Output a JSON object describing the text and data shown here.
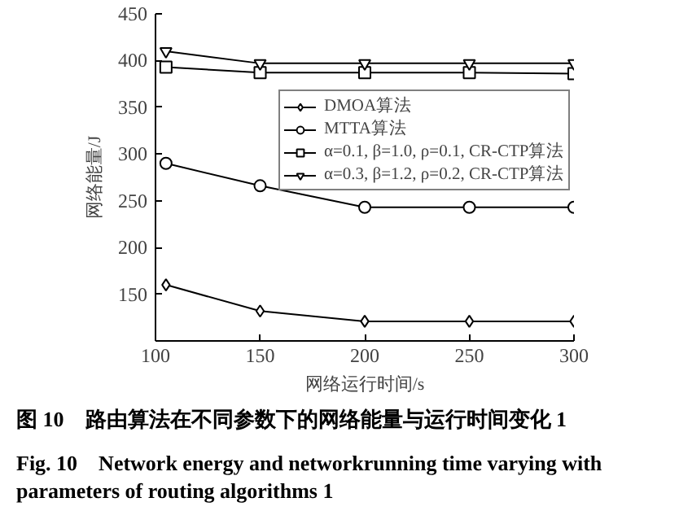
{
  "chart_data": {
    "type": "line",
    "xlabel": "网络运行时间/s",
    "ylabel": "网络能量/J",
    "x": [
      105,
      150,
      200,
      250,
      300
    ],
    "series": [
      {
        "name": "DMOA算法",
        "color": "#000000",
        "marker": "diamond",
        "values": [
          160,
          132,
          121,
          121,
          121
        ]
      },
      {
        "name": "MTTA算法",
        "color": "#000000",
        "marker": "circle",
        "values": [
          290,
          266,
          243,
          243,
          243
        ]
      },
      {
        "name": "α=0.1, β=1.0, ρ=0.1, CR-CTP算法",
        "color": "#000000",
        "marker": "square",
        "values": [
          393,
          387,
          387,
          387,
          386
        ]
      },
      {
        "name": "α=0.3, β=1.2, ρ=0.2, CR-CTP算法",
        "color": "#000000",
        "marker": "triangle",
        "values": [
          410,
          397,
          397,
          397,
          397
        ]
      }
    ],
    "xlim": [
      100,
      300
    ],
    "xticks": [
      100,
      150,
      200,
      250,
      300
    ],
    "ylim": [
      100,
      450
    ],
    "yticks": [
      150,
      200,
      250,
      300,
      350,
      400,
      450
    ],
    "grid": false,
    "legend": "top right",
    "line_style": "solid",
    "annotations": [
      "图 10　路由算法在不同参数下的网络能量与运行时间变化 1",
      "Fig. 10　Network energy and networkrunning time varying with parameters of routing algorithms 1"
    ]
  }
}
